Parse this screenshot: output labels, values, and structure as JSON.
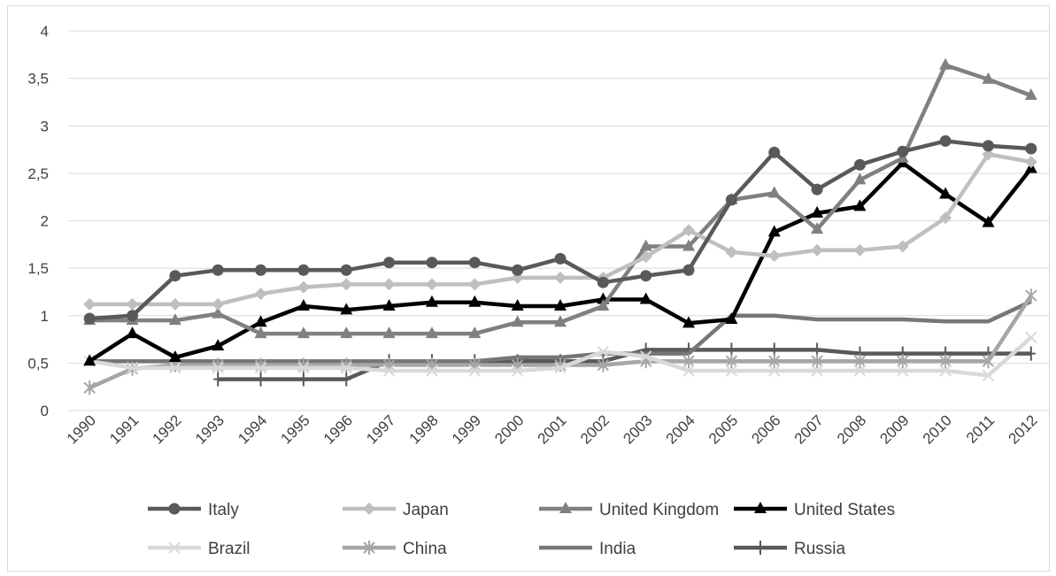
{
  "chart_data": {
    "type": "line",
    "title": "",
    "xlabel": "",
    "ylabel": "",
    "categories": [
      "1990",
      "1991",
      "1992",
      "1993",
      "1994",
      "1995",
      "1996",
      "1997",
      "1998",
      "1999",
      "2000",
      "2001",
      "2002",
      "2003",
      "2004",
      "2005",
      "2006",
      "2007",
      "2008",
      "2009",
      "2010",
      "2011",
      "2012"
    ],
    "y_ticks": [
      "0",
      "0,5",
      "1",
      "1,5",
      "2",
      "2,5",
      "3",
      "3,5",
      "4"
    ],
    "ylim": [
      0,
      4
    ],
    "grid": "horizontal",
    "legend_position": "bottom",
    "series": [
      {
        "name": "Italy",
        "marker": "circle",
        "color": "#595959",
        "values": [
          0.97,
          1.0,
          1.42,
          1.48,
          1.48,
          1.48,
          1.48,
          1.56,
          1.56,
          1.56,
          1.48,
          1.6,
          1.35,
          1.42,
          1.48,
          2.22,
          2.72,
          2.33,
          2.59,
          2.73,
          2.84,
          2.79,
          2.76
        ]
      },
      {
        "name": "Japan",
        "marker": "diamond",
        "color": "#bfbfbf",
        "values": [
          1.12,
          1.12,
          1.12,
          1.12,
          1.23,
          1.3,
          1.33,
          1.33,
          1.33,
          1.33,
          1.4,
          1.4,
          1.4,
          1.62,
          1.9,
          1.67,
          1.63,
          1.69,
          1.69,
          1.73,
          2.03,
          2.7,
          2.62
        ]
      },
      {
        "name": "United Kingdom",
        "marker": "triangle",
        "color": "#808080",
        "values": [
          0.95,
          0.95,
          0.95,
          1.02,
          0.81,
          0.81,
          0.81,
          0.81,
          0.81,
          0.81,
          0.93,
          0.93,
          1.1,
          1.73,
          1.73,
          2.22,
          2.29,
          1.91,
          2.43,
          2.66,
          3.64,
          3.49,
          3.32
        ]
      },
      {
        "name": "United States",
        "marker": "triangle",
        "color": "#000000",
        "values": [
          0.52,
          0.81,
          0.56,
          0.68,
          0.93,
          1.1,
          1.06,
          1.1,
          1.14,
          1.14,
          1.1,
          1.1,
          1.17,
          1.17,
          0.92,
          0.96,
          1.88,
          2.08,
          2.15,
          2.61,
          2.28,
          1.98,
          2.55
        ]
      },
      {
        "name": "Brazil",
        "marker": "x",
        "color": "#d9d9d9",
        "values": [
          0.52,
          0.45,
          0.45,
          0.45,
          0.45,
          0.45,
          0.45,
          0.42,
          0.42,
          0.42,
          0.42,
          0.45,
          0.62,
          0.57,
          0.42,
          0.42,
          0.42,
          0.42,
          0.42,
          0.42,
          0.42,
          0.37,
          0.77
        ]
      },
      {
        "name": "China",
        "marker": "star",
        "color": "#a6a6a6",
        "values": [
          0.24,
          0.44,
          0.48,
          0.48,
          0.48,
          0.48,
          0.48,
          0.48,
          0.48,
          0.48,
          0.48,
          0.48,
          0.48,
          0.52,
          0.52,
          0.52,
          0.52,
          0.52,
          0.52,
          0.52,
          0.52,
          0.52,
          1.21
        ]
      },
      {
        "name": "India",
        "marker": "none",
        "color": "#767676",
        "values": [
          0.52,
          0.52,
          0.52,
          0.52,
          0.52,
          0.52,
          0.52,
          0.52,
          0.52,
          0.52,
          0.56,
          0.56,
          0.6,
          0.6,
          0.6,
          1.0,
          1.0,
          0.96,
          0.96,
          0.96,
          0.94,
          0.94,
          1.15
        ]
      },
      {
        "name": "Russia",
        "marker": "plus",
        "color": "#595959",
        "values": [
          null,
          null,
          null,
          0.33,
          0.33,
          0.33,
          0.33,
          0.52,
          0.52,
          0.52,
          0.52,
          0.52,
          0.52,
          0.64,
          0.64,
          0.64,
          0.64,
          0.64,
          0.6,
          0.6,
          0.6,
          0.6,
          0.6
        ]
      }
    ]
  }
}
